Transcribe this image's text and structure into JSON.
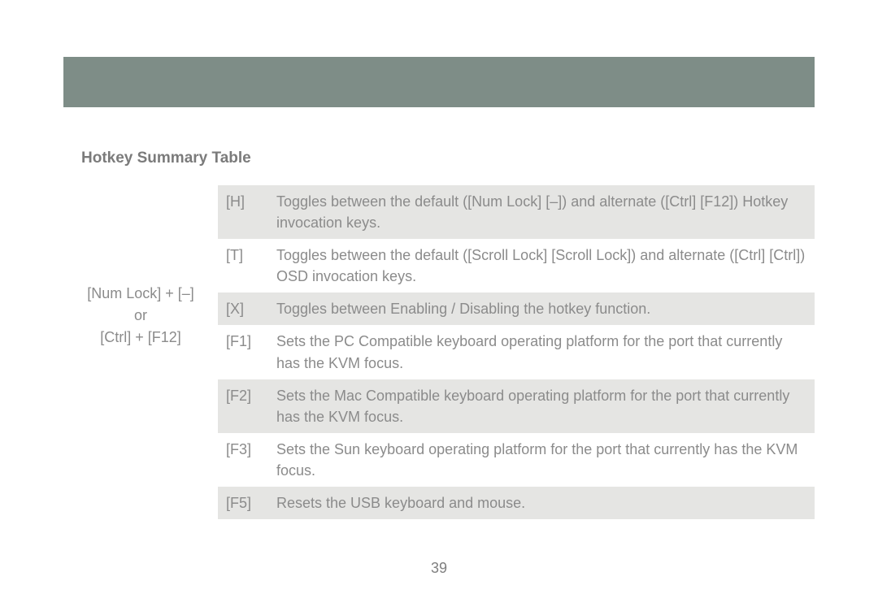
{
  "colors": {
    "headerBar": "#7e8d87",
    "background": "#ffffff",
    "rowAlt": "#e5e5e3",
    "text": "#8b8b8b",
    "titleText": "#7b7b7b"
  },
  "typography": {
    "baseFontSize": 18,
    "titleFontSize": 19,
    "titleWeight": "bold"
  },
  "section": {
    "title": "Hotkey Summary Table"
  },
  "prefix": {
    "line1": "[Num Lock] + [–]",
    "line2": "or",
    "line3": "[Ctrl] + [F12]"
  },
  "table": {
    "type": "table",
    "columns": [
      "key",
      "description"
    ],
    "rows": [
      {
        "key": "[H]",
        "desc": "Toggles between the default ([Num Lock] [–]) and alternate ([Ctrl] [F12]) Hotkey invocation keys."
      },
      {
        "key": "[T]",
        "desc": "Toggles between the default ([Scroll Lock] [Scroll Lock]) and alternate ([Ctrl] [Ctrl]) OSD invocation keys."
      },
      {
        "key": "[X]",
        "desc": "Toggles between Enabling / Disabling the hotkey function."
      },
      {
        "key": "[F1]",
        "desc": "Sets the PC Compatible keyboard operating platform for the port that currently has the KVM focus."
      },
      {
        "key": "[F2]",
        "desc": "Sets the Mac Compatible keyboard operating platform for the port that currently has the KVM focus."
      },
      {
        "key": "[F3]",
        "desc": "Sets the Sun keyboard operating platform for the port that currently has the KVM focus."
      },
      {
        "key": "[F5]",
        "desc": "Resets the USB keyboard and mouse."
      }
    ]
  },
  "pageNumber": "39"
}
